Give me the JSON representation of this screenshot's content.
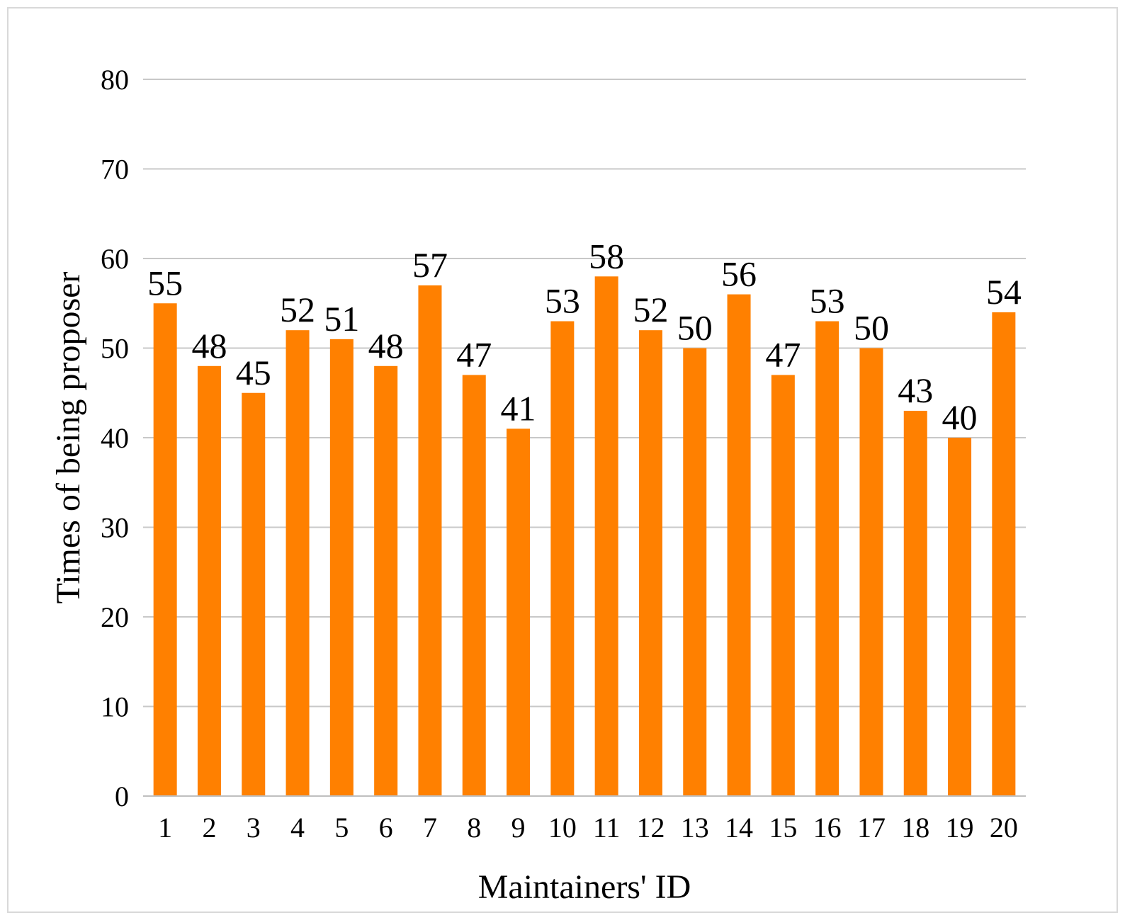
{
  "chart_data": {
    "type": "bar",
    "categories": [
      "1",
      "2",
      "3",
      "4",
      "5",
      "6",
      "7",
      "8",
      "9",
      "10",
      "11",
      "12",
      "13",
      "14",
      "15",
      "16",
      "17",
      "18",
      "19",
      "20"
    ],
    "values": [
      55,
      48,
      45,
      52,
      51,
      48,
      57,
      47,
      41,
      53,
      58,
      52,
      50,
      56,
      47,
      53,
      50,
      43,
      40,
      54
    ],
    "data_labels": [
      "55",
      "48",
      "45",
      "52",
      "51",
      "48",
      "57",
      "47",
      "41",
      "53",
      "58",
      "52",
      "50",
      "56",
      "47",
      "53",
      "50",
      "43",
      "40",
      "54"
    ],
    "xlabel": "Maintainers' ID",
    "ylabel": "Times of being proposer",
    "ylim": [
      0,
      80
    ],
    "yticks": [
      "0",
      "10",
      "20",
      "30",
      "40",
      "50",
      "60",
      "70",
      "80"
    ],
    "grid": "horizontal",
    "legend": "none",
    "colors": {
      "bar": "#FF8000",
      "grid": "#c8c8c8",
      "axis": "#bfbfbf",
      "frame": "#d9d9d9"
    }
  }
}
